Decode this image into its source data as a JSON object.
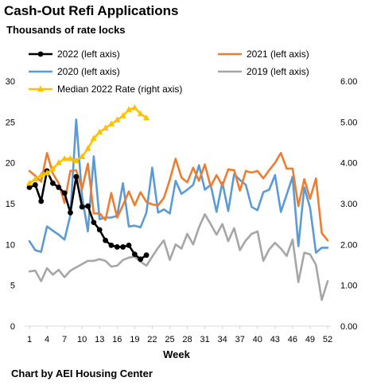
{
  "header": {
    "title": "Cash-Out Refi Applications",
    "subtitle": "Thousands of rate locks"
  },
  "footer": {
    "credit": "Chart by AEI Housing Center"
  },
  "chart_data": {
    "type": "line",
    "xlabel": "Week",
    "x_ticks": [
      1,
      4,
      7,
      10,
      13,
      16,
      19,
      22,
      25,
      28,
      31,
      34,
      37,
      40,
      43,
      46,
      49,
      52
    ],
    "xlim": [
      1,
      52
    ],
    "ylim_left": [
      0,
      30
    ],
    "ylim_right": [
      0,
      6
    ],
    "left_ticks": [
      0,
      5,
      10,
      15,
      20,
      25,
      30
    ],
    "right_ticks": [
      "0.00",
      "1.00",
      "2.00",
      "3.00",
      "4.00",
      "5.00",
      "6.00"
    ],
    "grid": false,
    "legend_position": "top",
    "series": [
      {
        "key": "s2019",
        "name": "2019 (left axis)",
        "axis": "left",
        "color": "#a6a6a6",
        "markers": false,
        "x": [
          1,
          2,
          3,
          4,
          5,
          6,
          7,
          8,
          9,
          10,
          11,
          12,
          13,
          14,
          15,
          16,
          17,
          18,
          19,
          20,
          21,
          22,
          23,
          24,
          25,
          26,
          27,
          28,
          29,
          30,
          31,
          32,
          33,
          34,
          35,
          36,
          37,
          38,
          39,
          40,
          41,
          42,
          43,
          44,
          45,
          46,
          47,
          48,
          49,
          50,
          51,
          52
        ],
        "values": [
          6.7,
          6.8,
          5.5,
          7.1,
          6.3,
          6.9,
          6.0,
          6.8,
          7.2,
          7.6,
          8.0,
          8.0,
          8.2,
          8.0,
          7.3,
          7.4,
          8.1,
          8.4,
          8.5,
          7.9,
          7.4,
          8.5,
          9.6,
          10.5,
          8.1,
          10.0,
          9.5,
          11.3,
          10.0,
          12.1,
          13.7,
          12.5,
          11.2,
          12.5,
          10.4,
          12.0,
          9.3,
          10.5,
          11.3,
          11.6,
          8.0,
          9.4,
          10.2,
          9.5,
          8.6,
          10.6,
          5.4,
          9.0,
          8.8,
          7.5,
          3.2,
          5.5
        ]
      },
      {
        "key": "s2020",
        "name": "2020 (left axis)",
        "axis": "left",
        "color": "#5b9bd5",
        "markers": false,
        "x": [
          1,
          2,
          3,
          4,
          5,
          6,
          7,
          8,
          9,
          10,
          11,
          12,
          13,
          14,
          15,
          16,
          17,
          18,
          19,
          20,
          21,
          22,
          23,
          24,
          25,
          26,
          27,
          28,
          29,
          30,
          31,
          32,
          33,
          34,
          35,
          36,
          37,
          38,
          39,
          40,
          41,
          42,
          43,
          44,
          45,
          46,
          47,
          48,
          49,
          50,
          51,
          52
        ],
        "values": [
          10.4,
          9.3,
          9.1,
          12.2,
          11.7,
          11.2,
          10.6,
          13.6,
          25.3,
          15.9,
          11.6,
          20.8,
          13.1,
          13.3,
          13.3,
          13.5,
          17.5,
          12.2,
          12.3,
          12.1,
          13.9,
          19.4,
          13.9,
          14.3,
          13.8,
          17.8,
          16.2,
          16.7,
          17.3,
          19.7,
          16.7,
          17.3,
          14.0,
          17.6,
          14.1,
          18.6,
          17.9,
          17.3,
          14.6,
          14.2,
          16.4,
          16.7,
          18.5,
          14.0,
          16.1,
          18.3,
          9.8,
          17.0,
          14.5,
          9.0,
          9.6,
          9.6
        ]
      },
      {
        "key": "s2021",
        "name": "2021 (left axis)",
        "axis": "left",
        "color": "#ed7d31",
        "markers": false,
        "x": [
          1,
          2,
          3,
          4,
          5,
          6,
          7,
          8,
          9,
          10,
          11,
          12,
          13,
          14,
          15,
          16,
          17,
          18,
          19,
          20,
          21,
          22,
          23,
          24,
          25,
          26,
          27,
          28,
          29,
          30,
          31,
          32,
          33,
          34,
          35,
          36,
          37,
          38,
          39,
          40,
          41,
          42,
          43,
          44,
          45,
          46,
          47,
          48,
          49,
          50,
          51,
          52
        ],
        "values": [
          19.0,
          18.4,
          17.7,
          21.2,
          18.7,
          17.5,
          15.1,
          19.0,
          19.1,
          16.8,
          19.9,
          13.8,
          13.8,
          13.0,
          16.3,
          13.3,
          14.8,
          16.5,
          14.8,
          16.4,
          15.2,
          14.9,
          14.8,
          15.7,
          17.9,
          20.5,
          18.2,
          17.6,
          19.4,
          17.8,
          19.8,
          17.1,
          18.5,
          17.2,
          19.2,
          19.1,
          16.6,
          19.0,
          18.8,
          19.0,
          18.1,
          19.1,
          20.0,
          21.2,
          19.3,
          19.3,
          14.7,
          18.0,
          15.6,
          18.1,
          11.4,
          10.5
        ]
      },
      {
        "key": "s2022",
        "name": "2022 (left axis)",
        "axis": "left",
        "color": "#000000",
        "markers": true,
        "marker": "circle",
        "x": [
          1,
          2,
          3,
          4,
          5,
          6,
          7,
          8,
          9,
          10,
          11,
          12,
          13,
          14,
          15,
          16,
          17,
          18,
          19,
          20,
          21
        ],
        "values": [
          17.0,
          17.3,
          15.3,
          19.0,
          17.5,
          17.0,
          16.3,
          13.9,
          18.3,
          14.6,
          14.7,
          12.7,
          11.8,
          10.5,
          9.9,
          9.7,
          9.7,
          9.9,
          8.8,
          8.2,
          8.7
        ]
      },
      {
        "key": "rate",
        "name": "Median 2022 Rate (right axis)",
        "axis": "right",
        "color": "#ffc000",
        "markers": true,
        "marker": "triangle",
        "x": [
          1,
          2,
          3,
          4,
          5,
          6,
          7,
          8,
          9,
          10,
          11,
          12,
          13,
          14,
          15,
          16,
          17,
          18,
          19,
          20,
          21
        ],
        "values": [
          3.5,
          3.6,
          3.7,
          3.75,
          3.85,
          4.0,
          4.1,
          4.1,
          4.05,
          4.15,
          4.35,
          4.6,
          4.75,
          4.85,
          4.95,
          5.05,
          5.15,
          5.3,
          5.35,
          5.2,
          5.1
        ]
      }
    ]
  }
}
